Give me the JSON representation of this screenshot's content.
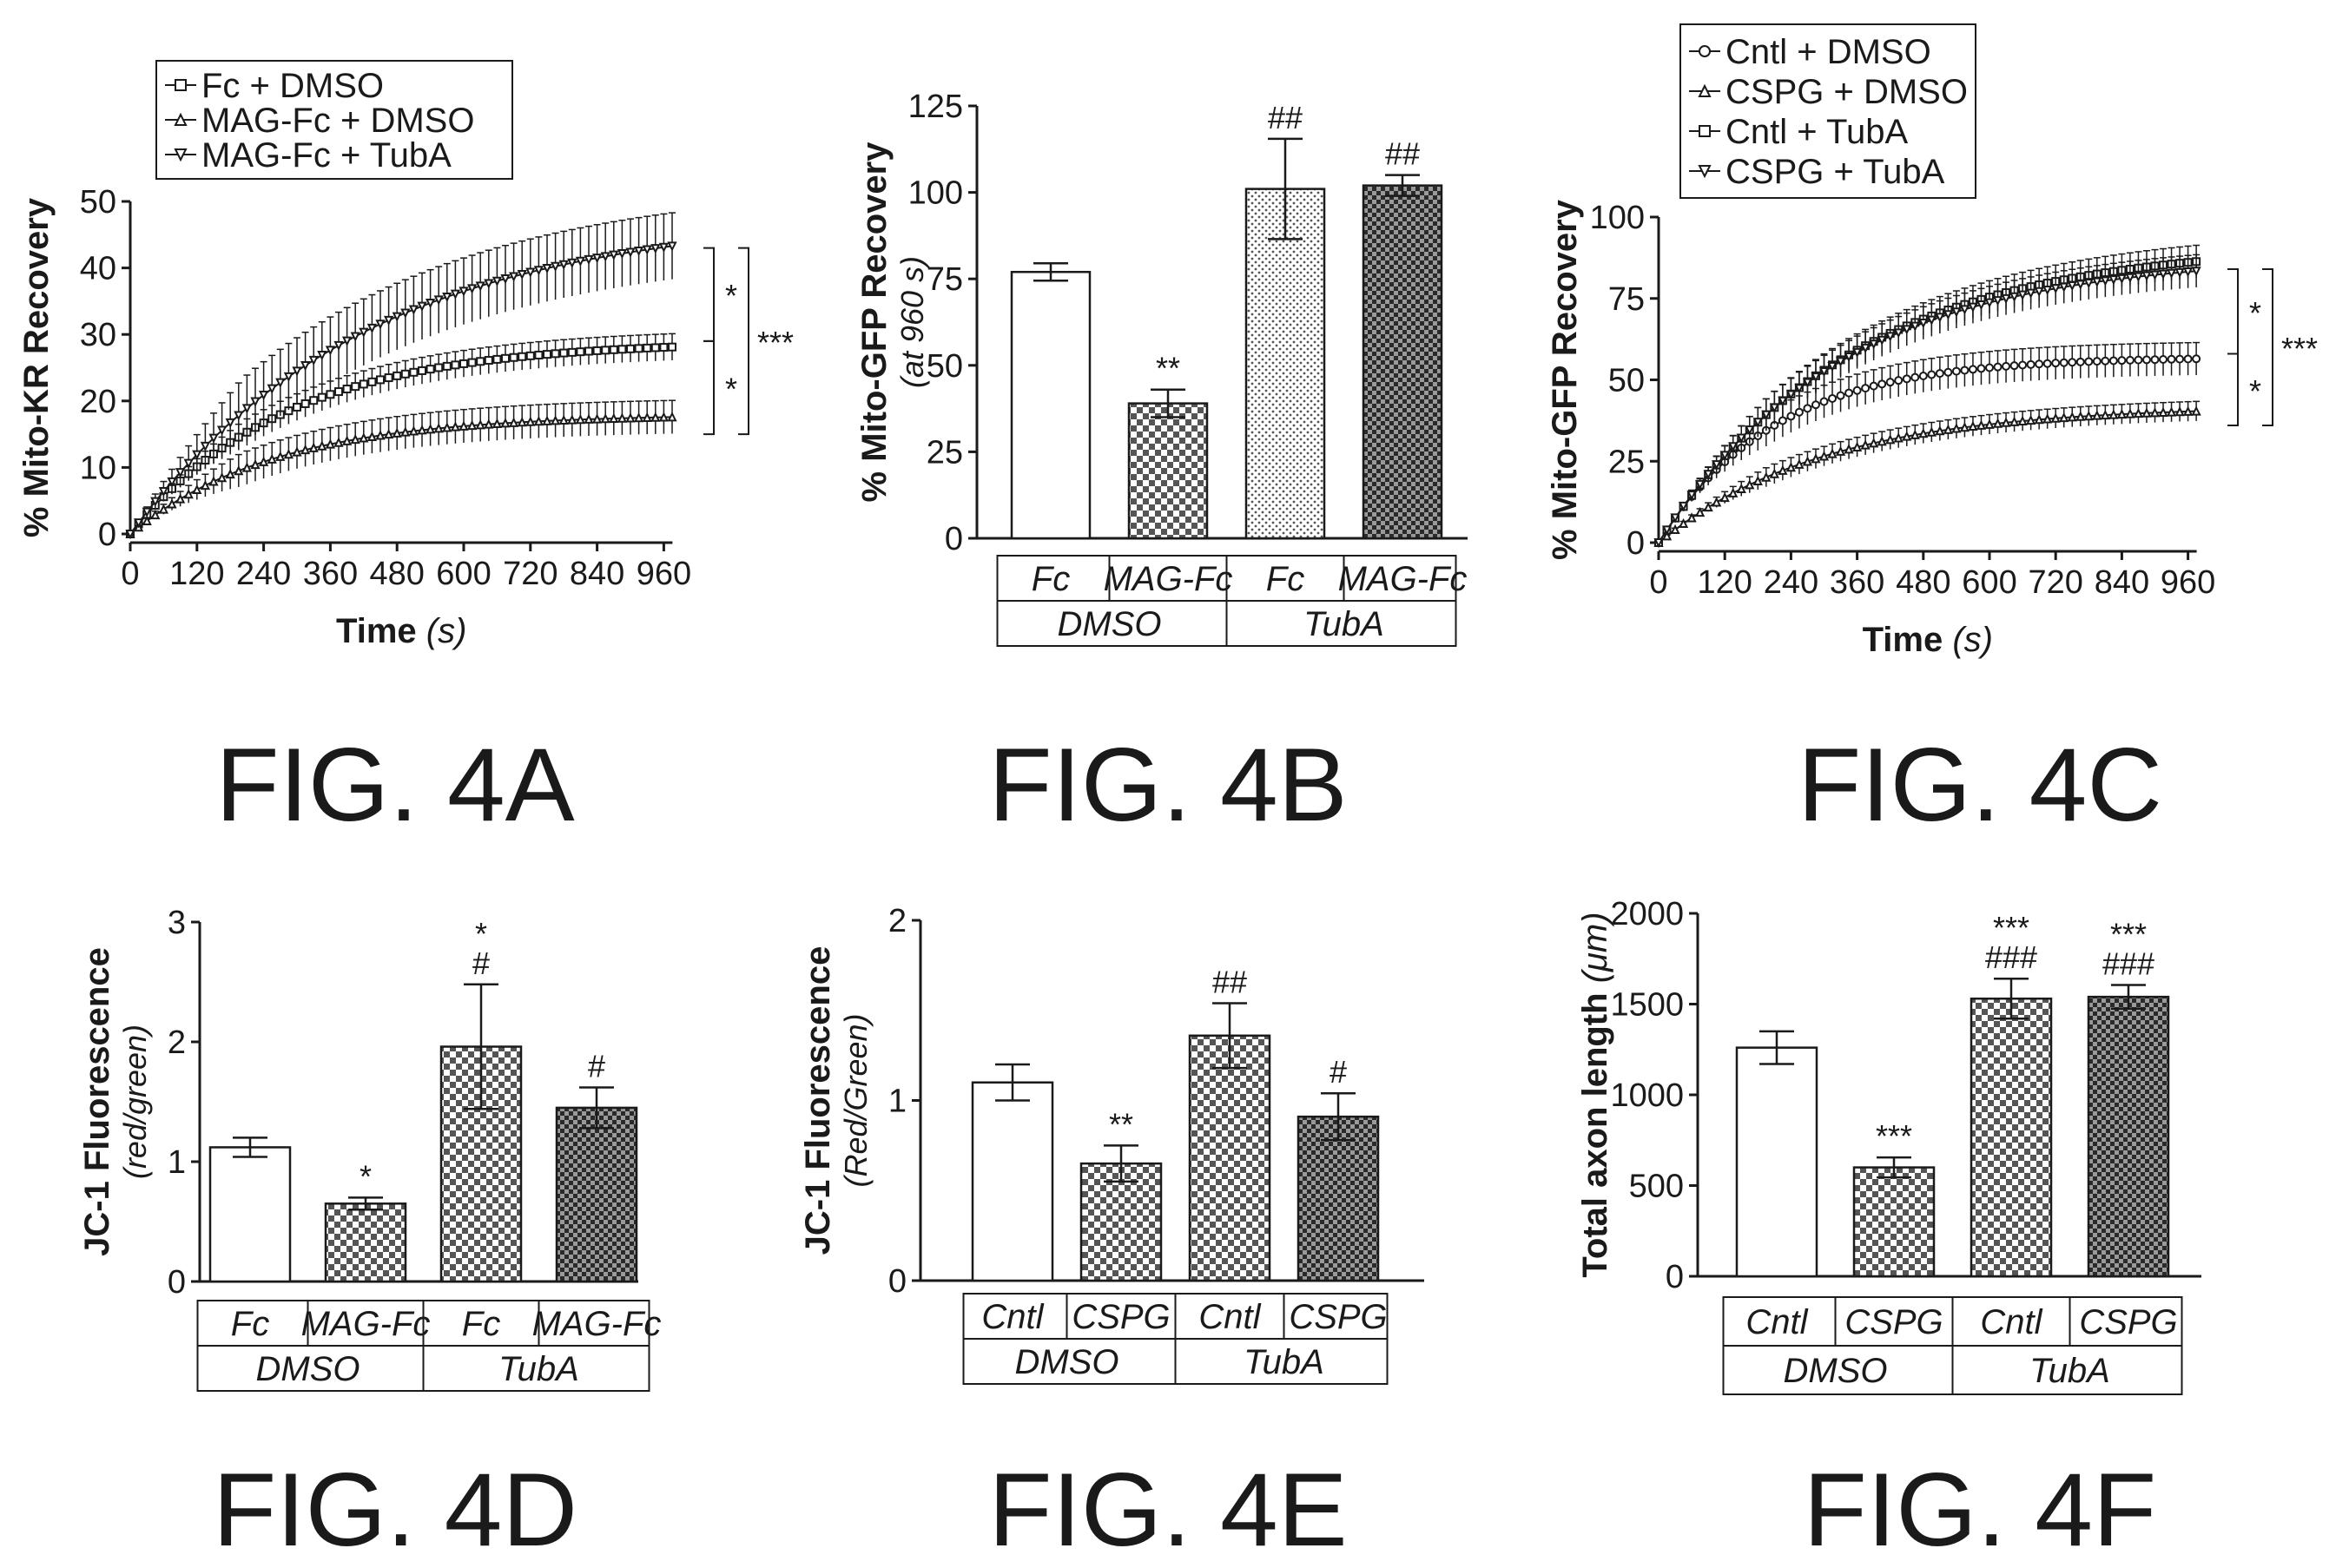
{
  "figure_labels": {
    "a": "FIG. 4A",
    "b": "FIG. 4B",
    "c": "FIG. 4C",
    "d": "FIG. 4D",
    "e": "FIG. 4E",
    "f": "FIG. 4F"
  },
  "chart_data": [
    {
      "id": "4A",
      "type": "line",
      "ylabel": "% Mito-KR Recovery",
      "xlabel_main": "Time",
      "xlabel_unit": "(s)",
      "xlim": [
        0,
        1000
      ],
      "ylim": [
        0,
        50
      ],
      "xticks": [
        0,
        120,
        240,
        360,
        480,
        600,
        720,
        840,
        960
      ],
      "yticks": [
        0,
        10,
        20,
        30,
        40,
        50
      ],
      "legend_position": "top-left",
      "series": [
        {
          "name": "Fc + DMSO",
          "marker": "square",
          "plateau": 29,
          "tau": 280,
          "err": 2
        },
        {
          "name": "MAG-Fc + DMSO",
          "marker": "triangle-up",
          "plateau": 18,
          "tau": 260,
          "err": 2.5
        },
        {
          "name": "MAG-Fc + TubA",
          "marker": "triangle-down",
          "plateau": 48,
          "tau": 420,
          "err": 5
        }
      ],
      "significance": [
        {
          "label": "*",
          "between": [
            43,
            29
          ]
        },
        {
          "label": "*",
          "between": [
            29,
            15
          ]
        },
        {
          "label": "***",
          "between": [
            43,
            15
          ]
        }
      ]
    },
    {
      "id": "4B",
      "type": "bar",
      "ylabel": "% Mito-GFP Recovery",
      "ylabel_sub": "(at 960 s)",
      "ylim": [
        0,
        125
      ],
      "yticks": [
        0,
        25,
        50,
        75,
        100,
        125
      ],
      "categories": [
        "Fc",
        "MAG-Fc",
        "Fc",
        "MAG-Fc"
      ],
      "groups": [
        {
          "label": "DMSO",
          "span": [
            0,
            1
          ]
        },
        {
          "label": "TubA",
          "span": [
            2,
            3
          ]
        }
      ],
      "values": [
        77,
        39,
        101,
        102
      ],
      "errors": [
        2.5,
        4,
        14.5,
        3
      ],
      "annotations": [
        [],
        [
          "**"
        ],
        [
          "##"
        ],
        [
          "##"
        ]
      ]
    },
    {
      "id": "4C",
      "type": "line",
      "ylabel": "% Mito-GFP Recovery",
      "xlabel_main": "Time",
      "xlabel_unit": "(s)",
      "xlim": [
        0,
        1000
      ],
      "ylim": [
        0,
        100
      ],
      "xticks": [
        0,
        120,
        240,
        360,
        480,
        600,
        720,
        840,
        960
      ],
      "yticks": [
        0,
        25,
        50,
        75,
        100
      ],
      "legend_position": "top-left",
      "series": [
        {
          "name": "Cntl + DMSO",
          "marker": "circle",
          "plateau": 57,
          "tau": 210,
          "err": 5
        },
        {
          "name": "CSPG + DMSO",
          "marker": "triangle-up",
          "plateau": 42,
          "tau": 300,
          "err": 3
        },
        {
          "name": "Cntl + TubA",
          "marker": "square",
          "plateau": 92,
          "tau": 350,
          "err": 5
        },
        {
          "name": "CSPG + TubA",
          "marker": "triangle-down",
          "plateau": 88,
          "tau": 330,
          "err": 5
        }
      ],
      "significance": [
        {
          "label": "*",
          "between": [
            84,
            58
          ]
        },
        {
          "label": "*",
          "between": [
            58,
            36
          ]
        },
        {
          "label": "***",
          "between": [
            84,
            36
          ]
        }
      ]
    },
    {
      "id": "4D",
      "type": "bar",
      "ylabel": "JC-1 Fluorescence",
      "ylabel_sub": "(red/green)",
      "ylim": [
        0,
        3
      ],
      "yticks": [
        0,
        1,
        2,
        3
      ],
      "categories": [
        "Fc",
        "MAG-Fc",
        "Fc",
        "MAG-Fc"
      ],
      "groups": [
        {
          "label": "DMSO",
          "span": [
            0,
            1
          ]
        },
        {
          "label": "TubA",
          "span": [
            2,
            3
          ]
        }
      ],
      "values": [
        1.12,
        0.65,
        1.96,
        1.45
      ],
      "errors": [
        0.08,
        0.05,
        0.52,
        0.17
      ],
      "annotations": [
        [],
        [
          "*"
        ],
        [
          "#",
          "*"
        ],
        [
          "#"
        ]
      ]
    },
    {
      "id": "4E",
      "type": "bar",
      "ylabel": "JC-1 Fluorescence",
      "ylabel_sub": "(Red/Green)",
      "ylim": [
        0,
        2
      ],
      "yticks": [
        0,
        1,
        2
      ],
      "categories": [
        "Cntl",
        "CSPG",
        "Cntl",
        "CSPG"
      ],
      "groups": [
        {
          "label": "DMSO",
          "span": [
            0,
            1
          ]
        },
        {
          "label": "TubA",
          "span": [
            2,
            3
          ]
        }
      ],
      "values": [
        1.1,
        0.65,
        1.36,
        0.91
      ],
      "errors": [
        0.1,
        0.1,
        0.18,
        0.13
      ],
      "annotations": [
        [],
        [
          "**"
        ],
        [
          "##"
        ],
        [
          "#"
        ]
      ]
    },
    {
      "id": "4F",
      "type": "bar",
      "ylabel": "Total axon length",
      "ylabel_unit": "(μm)",
      "ylim": [
        0,
        2000
      ],
      "yticks": [
        0,
        500,
        1000,
        1500,
        2000
      ],
      "categories": [
        "Cntl",
        "CSPG",
        "Cntl",
        "CSPG"
      ],
      "groups": [
        {
          "label": "DMSO",
          "span": [
            0,
            1
          ]
        },
        {
          "label": "TubA",
          "span": [
            2,
            3
          ]
        }
      ],
      "values": [
        1260,
        600,
        1530,
        1540
      ],
      "errors": [
        90,
        55,
        110,
        65
      ],
      "annotations": [
        [],
        [
          "***"
        ],
        [
          "###",
          "***"
        ],
        [
          "###",
          "***"
        ]
      ]
    }
  ]
}
